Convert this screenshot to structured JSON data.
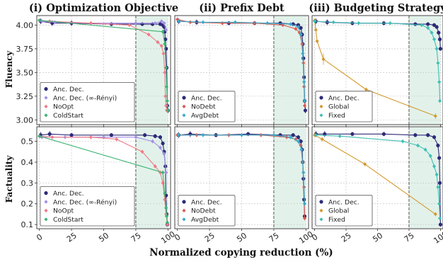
{
  "figure": {
    "xlabel": "Normalized copying reduction (%)",
    "row_labels": [
      "Fluency",
      "Factuality"
    ]
  },
  "colors": {
    "anc": "#2e2a78",
    "renyi": "#a48ee6",
    "noopt": "#ee7b86",
    "coldstart": "#3cb372",
    "nodebt": "#d95a4f",
    "avgdebt": "#3aa9c8",
    "global": "#d4992c",
    "fixed": "#3fbfb4",
    "band": "#e2f2ea",
    "vline": "#444444"
  },
  "chart_data": [
    {
      "type": "line",
      "title": "(i) Optimization Objective",
      "ylabel": "Fluency",
      "xlim": [
        -2,
        102
      ],
      "ylim": [
        2.95,
        4.1
      ],
      "yticks": [
        "3.00",
        "3.25",
        "3.50",
        "3.75",
        "4.00"
      ],
      "xticks": [
        "0",
        "25",
        "50",
        "75",
        "100"
      ],
      "vline": 75,
      "band": [
        75,
        100
      ],
      "grid": true,
      "legend": "bottom-left",
      "series": [
        {
          "name": "Anc. Dec.",
          "color": "#2e2a78",
          "x": [
            1,
            10,
            25,
            56,
            80,
            88,
            94,
            96,
            97,
            97.5,
            98,
            98.5,
            99,
            99.5,
            100
          ],
          "y": [
            4.04,
            4.02,
            4.02,
            4.01,
            4.01,
            4.01,
            4.01,
            4.0,
            3.98,
            3.93,
            3.85,
            3.75,
            3.55,
            3.15,
            3.1
          ],
          "err": [
            0.03,
            0.03,
            0.03,
            0.02,
            0.02,
            0.02,
            0.02,
            0.02,
            0.02,
            0.02,
            0.02,
            0.02,
            0.03,
            0.03,
            0.03
          ]
        },
        {
          "name": "Anc. Dec. (∞-Rényi)",
          "color": "#a48ee6",
          "x": [
            2,
            12,
            40,
            75,
            90,
            95,
            97,
            98.5
          ],
          "y": [
            4.04,
            4.03,
            4.02,
            4.02,
            4.02,
            4.04,
            4.02,
            3.95
          ],
          "err": [
            0.02,
            0.02,
            0.02,
            0.02,
            0.02,
            0.02,
            0.02,
            0.02
          ]
        },
        {
          "name": "NoOpt",
          "color": "#ee7b86",
          "x": [
            0,
            8,
            40,
            70,
            85,
            92,
            95,
            96.5,
            97.5,
            98,
            98.5,
            99,
            99.5
          ],
          "y": [
            4.05,
            4.04,
            4.02,
            4.0,
            3.9,
            3.82,
            3.78,
            3.7,
            3.5,
            3.25,
            3.15,
            3.1,
            3.1
          ],
          "err": [
            0.02,
            0.02,
            0.02,
            0.02,
            0.02,
            0.02,
            0.02,
            0.02,
            0.02,
            0.02,
            0.02,
            0.02,
            0.02
          ]
        },
        {
          "name": "ColdStart",
          "color": "#3cb372",
          "x": [
            0,
            96,
            97.5,
            98.5,
            99,
            99.5,
            100
          ],
          "y": [
            4.05,
            3.93,
            3.8,
            3.55,
            3.35,
            3.2,
            3.1
          ],
          "err": [
            0.02,
            0.02,
            0.02,
            0.02,
            0.02,
            0.02,
            0.02
          ]
        }
      ]
    },
    {
      "type": "line",
      "title": "(ii) Prefix Debt",
      "ylabel": "",
      "xlim": [
        -2,
        102
      ],
      "ylim": [
        2.95,
        4.1
      ],
      "yticks": [],
      "xticks": [
        "0",
        "25",
        "50",
        "75",
        "100"
      ],
      "vline": 75,
      "band": [
        75,
        100
      ],
      "grid": true,
      "legend": "bottom-left",
      "series": [
        {
          "name": "Anc. Dec.",
          "color": "#2e2a78",
          "x": [
            1,
            15,
            40,
            60,
            80,
            90,
            94,
            96,
            97,
            97.5,
            98,
            98.5,
            99,
            99.5
          ],
          "y": [
            4.04,
            4.03,
            4.02,
            4.02,
            4.02,
            4.01,
            4.0,
            3.97,
            3.9,
            3.8,
            3.65,
            3.45,
            3.2,
            3.1
          ],
          "err": [
            0.03,
            0.03,
            0.02,
            0.02,
            0.02,
            0.02,
            0.02,
            0.02,
            0.02,
            0.02,
            0.02,
            0.02,
            0.03,
            0.03
          ]
        },
        {
          "name": "NoDebt",
          "color": "#d95a4f",
          "x": [
            0,
            10,
            35,
            60,
            82,
            92,
            95,
            97,
            98,
            98.5,
            99
          ],
          "y": [
            4.06,
            4.03,
            4.02,
            4.02,
            4.0,
            3.96,
            3.92,
            3.8,
            3.6,
            3.35,
            3.15
          ],
          "err": [
            0.02,
            0.02,
            0.02,
            0.02,
            0.02,
            0.02,
            0.02,
            0.02,
            0.02,
            0.02,
            0.02
          ]
        },
        {
          "name": "AvgDebt",
          "color": "#3aa9c8",
          "x": [
            1,
            20,
            45,
            70,
            88,
            94,
            96,
            97.5,
            98.5,
            99
          ],
          "y": [
            4.04,
            4.03,
            4.03,
            4.02,
            4.01,
            3.98,
            3.9,
            3.7,
            3.4,
            3.2
          ],
          "err": [
            0.02,
            0.02,
            0.02,
            0.02,
            0.02,
            0.02,
            0.02,
            0.02,
            0.02,
            0.02
          ]
        }
      ]
    },
    {
      "type": "line",
      "title": "(iii) Budgeting Strategy",
      "ylabel": "",
      "xlim": [
        -2,
        102
      ],
      "ylim": [
        2.95,
        4.1
      ],
      "yticks": [],
      "xticks": [
        "0",
        "25",
        "50",
        "75",
        "100"
      ],
      "vline": 75,
      "band": [
        75,
        100
      ],
      "grid": true,
      "legend": "bottom-left",
      "series": [
        {
          "name": "Anc. Dec.",
          "color": "#2e2a78",
          "x": [
            1,
            10,
            30,
            55,
            80,
            90,
            95,
            97,
            98.5,
            99.5,
            100
          ],
          "y": [
            4.04,
            4.03,
            4.02,
            4.02,
            4.01,
            4.01,
            4.0,
            3.98,
            3.92,
            3.85,
            3.75
          ],
          "err": [
            0.03,
            0.03,
            0.02,
            0.02,
            0.02,
            0.02,
            0.02,
            0.02,
            0.02,
            0.02,
            0.02
          ]
        },
        {
          "name": "Global",
          "color": "#d4992c",
          "x": [
            0,
            1,
            2,
            7,
            41,
            96
          ],
          "y": [
            4.05,
            3.95,
            3.83,
            3.64,
            3.32,
            3.04
          ],
          "err": [
            0.02,
            0.02,
            0.02,
            0.06,
            0.02,
            0.03
          ]
        },
        {
          "name": "Fixed",
          "color": "#3fbfb4",
          "x": [
            0,
            15,
            35,
            60,
            85,
            90,
            93,
            95,
            97,
            98,
            99,
            99.5
          ],
          "y": [
            4.04,
            4.03,
            4.02,
            4.02,
            4.0,
            3.97,
            3.92,
            3.85,
            3.75,
            3.6,
            3.4,
            3.2
          ],
          "err": [
            0.02,
            0.02,
            0.02,
            0.02,
            0.02,
            0.02,
            0.02,
            0.02,
            0.02,
            0.02,
            0.02,
            0.02
          ]
        }
      ]
    },
    {
      "type": "line",
      "title": "",
      "ylabel": "Factuality",
      "xlim": [
        -2,
        102
      ],
      "ylim": [
        0.08,
        0.57
      ],
      "yticks": [
        "0.1",
        "0.2",
        "0.3",
        "0.4",
        "0.5"
      ],
      "xticks": [
        "0",
        "25",
        "50",
        "75",
        "100"
      ],
      "vline": 75,
      "band": [
        75,
        100
      ],
      "grid": true,
      "legend": "bottom-left",
      "series": [
        {
          "name": "Anc. Dec.",
          "color": "#2e2a78",
          "x": [
            1,
            8,
            25,
            56,
            82,
            90,
            94,
            96,
            97,
            98,
            98.5,
            99,
            99.5
          ],
          "y": [
            0.53,
            0.535,
            0.53,
            0.53,
            0.53,
            0.525,
            0.52,
            0.49,
            0.45,
            0.38,
            0.24,
            0.15,
            0.1
          ],
          "err": [
            0.015,
            0.015,
            0.01,
            0.01,
            0.01,
            0.01,
            0.01,
            0.01,
            0.01,
            0.01,
            0.01,
            0.01,
            0.01
          ]
        },
        {
          "name": "Anc. Dec. (∞-Rényi)",
          "color": "#a48ee6",
          "x": [
            2,
            20,
            50,
            75,
            88,
            94,
            97,
            98.5
          ],
          "y": [
            0.52,
            0.52,
            0.52,
            0.52,
            0.5,
            0.47,
            0.44,
            0.35
          ],
          "err": [
            0.01,
            0.01,
            0.01,
            0.01,
            0.01,
            0.01,
            0.01,
            0.01
          ]
        },
        {
          "name": "NoOpt",
          "color": "#ee7b86",
          "x": [
            0,
            10,
            40,
            60,
            80,
            90,
            94,
            96,
            97.5,
            98.5,
            99.5
          ],
          "y": [
            0.525,
            0.52,
            0.52,
            0.51,
            0.45,
            0.38,
            0.35,
            0.3,
            0.22,
            0.15,
            0.1
          ],
          "err": [
            0.01,
            0.01,
            0.01,
            0.01,
            0.01,
            0.01,
            0.01,
            0.01,
            0.01,
            0.01,
            0.01
          ]
        },
        {
          "name": "ColdStart",
          "color": "#3cb372",
          "x": [
            0,
            96,
            97.5,
            98.5,
            99,
            99.5
          ],
          "y": [
            0.525,
            0.35,
            0.25,
            0.18,
            0.14,
            0.11
          ],
          "err": [
            0.01,
            0.01,
            0.01,
            0.01,
            0.01,
            0.01
          ]
        }
      ]
    },
    {
      "type": "line",
      "title": "",
      "ylabel": "",
      "xlim": [
        -2,
        102
      ],
      "ylim": [
        0.08,
        0.57
      ],
      "yticks": [],
      "xticks": [
        "0",
        "25",
        "50",
        "75",
        "100"
      ],
      "vline": 75,
      "band": [
        75,
        100
      ],
      "grid": true,
      "legend": "bottom-left",
      "series": [
        {
          "name": "Anc. Dec.",
          "color": "#2e2a78",
          "x": [
            1,
            10,
            30,
            55,
            80,
            90,
            94,
            96,
            97,
            97.5,
            98,
            98.5,
            99
          ],
          "y": [
            0.53,
            0.535,
            0.53,
            0.535,
            0.53,
            0.53,
            0.52,
            0.5,
            0.46,
            0.4,
            0.32,
            0.22,
            0.14
          ],
          "err": [
            0.015,
            0.015,
            0.01,
            0.01,
            0.01,
            0.01,
            0.01,
            0.01,
            0.01,
            0.01,
            0.01,
            0.01,
            0.01
          ]
        },
        {
          "name": "NoDebt",
          "color": "#d95a4f",
          "x": [
            0,
            15,
            40,
            65,
            85,
            92,
            96,
            97.5,
            98.5,
            99
          ],
          "y": [
            0.53,
            0.53,
            0.53,
            0.53,
            0.52,
            0.51,
            0.48,
            0.4,
            0.28,
            0.13
          ],
          "err": [
            0.01,
            0.01,
            0.01,
            0.01,
            0.01,
            0.01,
            0.01,
            0.01,
            0.01,
            0.01
          ]
        },
        {
          "name": "AvgDebt",
          "color": "#3aa9c8",
          "x": [
            1,
            20,
            50,
            75,
            88,
            94,
            96.5,
            98,
            99
          ],
          "y": [
            0.53,
            0.53,
            0.53,
            0.53,
            0.52,
            0.5,
            0.46,
            0.35,
            0.2
          ],
          "err": [
            0.01,
            0.01,
            0.01,
            0.01,
            0.01,
            0.01,
            0.01,
            0.01,
            0.01
          ]
        }
      ]
    },
    {
      "type": "line",
      "title": "",
      "ylabel": "",
      "xlim": [
        -2,
        102
      ],
      "ylim": [
        0.08,
        0.57
      ],
      "yticks": [],
      "xticks": [
        "0",
        "25",
        "50",
        "75",
        "100"
      ],
      "vline": 75,
      "band": [
        75,
        100
      ],
      "grid": true,
      "legend": "bottom-left",
      "series": [
        {
          "name": "Anc. Dec.",
          "color": "#2e2a78",
          "x": [
            1,
            8,
            30,
            55,
            80,
            90,
            95,
            98,
            99,
            99.5,
            100
          ],
          "y": [
            0.535,
            0.535,
            0.535,
            0.535,
            0.53,
            0.53,
            0.52,
            0.48,
            0.42,
            0.3,
            0.1
          ],
          "err": [
            0.015,
            0.015,
            0.01,
            0.01,
            0.01,
            0.01,
            0.01,
            0.01,
            0.01,
            0.01,
            0.01
          ]
        },
        {
          "name": "Global",
          "color": "#d4992c",
          "x": [
            0,
            6,
            40,
            96
          ],
          "y": [
            0.53,
            0.51,
            0.39,
            0.15
          ],
          "err": [
            0.01,
            0.01,
            0.01,
            0.01
          ]
        },
        {
          "name": "Fixed",
          "color": "#3fbfb4",
          "x": [
            1,
            20,
            70,
            82,
            88,
            92,
            95,
            97,
            98,
            99,
            99.5
          ],
          "y": [
            0.53,
            0.525,
            0.5,
            0.48,
            0.46,
            0.43,
            0.38,
            0.34,
            0.28,
            0.2,
            0.13
          ],
          "err": [
            0.01,
            0.01,
            0.01,
            0.01,
            0.01,
            0.01,
            0.01,
            0.01,
            0.01,
            0.01,
            0.01
          ]
        }
      ]
    }
  ]
}
